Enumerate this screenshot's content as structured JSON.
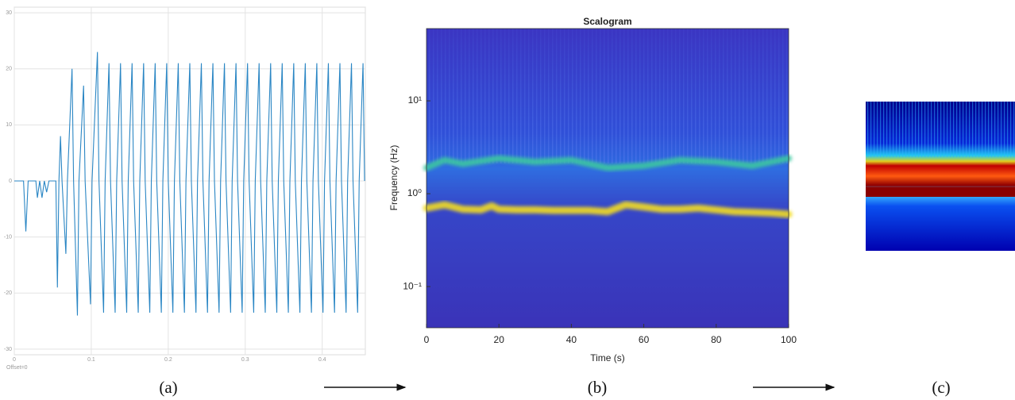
{
  "chart_data": [
    {
      "type": "line",
      "color": "#2a86c4",
      "x": [
        0,
        0.012,
        0.015,
        0.018,
        0.028,
        0.03,
        0.033,
        0.036,
        0.039,
        0.042,
        0.045,
        0.054,
        0.056,
        0.058,
        0.06,
        0.062,
        0.067,
        0.069,
        0.075,
        0.077,
        0.082,
        0.084,
        0.09,
        0.092,
        0.099,
        0.101,
        0.108,
        0.11,
        0.116,
        0.118,
        0.123,
        0.125,
        0.131,
        0.133,
        0.138,
        0.14,
        0.146,
        0.148,
        0.153,
        0.155,
        0.161,
        0.163,
        0.168,
        0.17,
        0.176,
        0.178,
        0.183,
        0.185,
        0.191,
        0.193,
        0.198,
        0.2,
        0.206,
        0.208,
        0.213,
        0.215,
        0.221,
        0.223,
        0.228,
        0.23,
        0.236,
        0.238,
        0.243,
        0.245,
        0.251,
        0.253,
        0.258,
        0.26,
        0.266,
        0.268,
        0.273,
        0.275,
        0.281,
        0.283,
        0.288,
        0.29,
        0.296,
        0.298,
        0.303,
        0.305,
        0.311,
        0.313,
        0.318,
        0.32,
        0.326,
        0.328,
        0.333,
        0.335,
        0.341,
        0.343,
        0.348,
        0.35,
        0.356,
        0.358,
        0.363,
        0.365,
        0.371,
        0.373,
        0.378,
        0.38,
        0.386,
        0.388,
        0.393,
        0.395,
        0.401,
        0.403,
        0.408,
        0.41,
        0.416,
        0.418,
        0.423,
        0.425,
        0.431,
        0.433,
        0.438,
        0.44,
        0.446,
        0.448,
        0.453,
        0.455
      ],
      "values": [
        0,
        0,
        -9,
        0,
        0,
        -3,
        0,
        -3,
        0,
        -2,
        0,
        0,
        -19,
        0,
        8,
        0,
        -13,
        0,
        20,
        0,
        -24,
        0,
        17,
        0,
        -22,
        0,
        23,
        0,
        -23.5,
        0,
        21,
        0,
        -23.5,
        0,
        21,
        0,
        -23.5,
        0,
        21,
        0,
        -23.5,
        0,
        21,
        0,
        -23.5,
        0,
        21,
        0,
        -23.5,
        0,
        21,
        0,
        -23.5,
        0,
        21,
        0,
        -23.5,
        0,
        21,
        0,
        -23.5,
        0,
        21,
        0,
        -23.5,
        0,
        21,
        0,
        -23.5,
        0,
        21,
        0,
        -23.5,
        0,
        21,
        0,
        -23.5,
        0,
        21,
        0,
        -23.5,
        0,
        21,
        0,
        -23.5,
        0,
        21,
        0,
        -23.5,
        0,
        21,
        0,
        -23.5,
        0,
        21,
        0,
        -23.5,
        0,
        21,
        0,
        -23.5,
        0,
        21,
        0,
        -23.5,
        0,
        21,
        0,
        -23.5,
        0,
        21,
        0,
        -23.5,
        0,
        21,
        0,
        -23.5,
        0,
        21,
        0
      ],
      "xlim": [
        0,
        0.456
      ],
      "ylim": [
        -31,
        31
      ],
      "xticks": [
        0,
        0.1,
        0.2,
        0.3,
        0.4
      ],
      "yticks": [
        30,
        20,
        10,
        0,
        -10,
        -20,
        -30
      ],
      "grid": true,
      "annotation": "Offset=0",
      "label": "(a)"
    },
    {
      "type": "heatmap",
      "title": "Scalogram",
      "xlabel": "Time (s)",
      "ylabel": "Frequency (Hz)",
      "xlim": [
        0,
        100
      ],
      "ylim": [
        0.036,
        60
      ],
      "log_y": true,
      "xticks": [
        0,
        20,
        40,
        60,
        80,
        100
      ],
      "yticks": [
        {
          "value": 0.1,
          "label": "10⁻¹"
        },
        {
          "value": 1,
          "label": "10⁰"
        },
        {
          "value": 10,
          "label": "10¹"
        }
      ],
      "series": [
        {
          "color": "#3cc8a0",
          "x": [
            0,
            5,
            10,
            20,
            30,
            40,
            50,
            60,
            70,
            80,
            90,
            100
          ],
          "values": [
            1.9,
            2.3,
            2.1,
            2.4,
            2.2,
            2.3,
            1.9,
            2.0,
            2.3,
            2.2,
            2.0,
            2.4
          ]
        },
        {
          "color": "#f2dc22",
          "x": [
            0,
            5,
            10,
            15,
            18,
            20,
            25,
            30,
            35,
            40,
            45,
            50,
            55,
            60,
            65,
            70,
            75,
            80,
            85,
            90,
            95,
            100
          ],
          "values": [
            0.7,
            0.76,
            0.68,
            0.67,
            0.74,
            0.68,
            0.67,
            0.67,
            0.66,
            0.66,
            0.66,
            0.64,
            0.76,
            0.72,
            0.68,
            0.68,
            0.7,
            0.67,
            0.64,
            0.63,
            0.62,
            0.6
          ]
        }
      ],
      "label": "(b)"
    },
    {
      "type": "image",
      "label": "(c)"
    }
  ]
}
